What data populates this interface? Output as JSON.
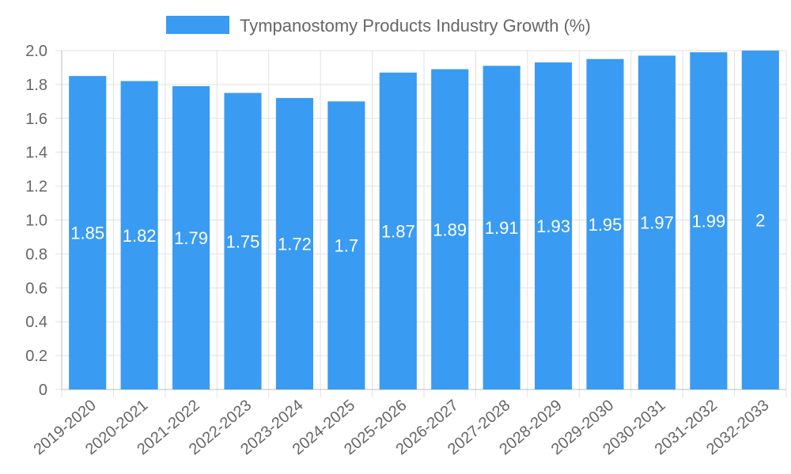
{
  "chart_data": {
    "type": "bar",
    "title": "",
    "xlabel": "",
    "ylabel": "",
    "legend": {
      "position": "top",
      "entries": [
        "Tympanostomy Products Industry Growth (%)"
      ]
    },
    "categories": [
      "2019-2020",
      "2020-2021",
      "2021-2022",
      "2022-2023",
      "2023-2024",
      "2024-2025",
      "2025-2026",
      "2026-2027",
      "2027-2028",
      "2028-2029",
      "2029-2030",
      "2030-2031",
      "2031-2032",
      "2032-2033"
    ],
    "series": [
      {
        "name": "Tympanostomy Products Industry Growth (%)",
        "color": "#3a9bf2",
        "values": [
          1.85,
          1.82,
          1.79,
          1.75,
          1.72,
          1.7,
          1.87,
          1.89,
          1.91,
          1.93,
          1.95,
          1.97,
          1.99,
          2
        ]
      }
    ],
    "ylim": [
      0,
      2.0
    ],
    "yticks": [
      "0",
      "0.2",
      "0.4",
      "0.6",
      "0.8",
      "1.0",
      "1.2",
      "1.4",
      "1.6",
      "1.8",
      "2.0"
    ],
    "data_labels": [
      "1.85",
      "1.82",
      "1.79",
      "1.75",
      "1.72",
      "1.7",
      "1.87",
      "1.89",
      "1.91",
      "1.93",
      "1.95",
      "1.97",
      "1.99",
      "2"
    ],
    "grid": true
  }
}
